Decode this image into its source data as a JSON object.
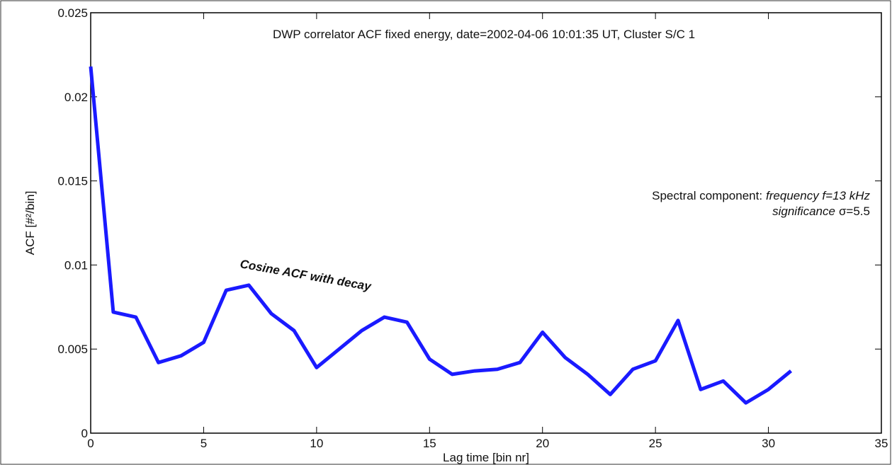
{
  "chart_data": {
    "type": "line",
    "title": "DWP correlator ACF fixed energy, date=2002-04-06 10:01:35 UT, Cluster S/C 1",
    "xlabel": "Lag time [bin nr]",
    "ylabel": "ACF [#²/bin]",
    "x": [
      0,
      1,
      2,
      3,
      4,
      5,
      6,
      7,
      8,
      9,
      10,
      11,
      12,
      13,
      14,
      15,
      16,
      17,
      18,
      19,
      20,
      21,
      22,
      23,
      24,
      25,
      26,
      27,
      28,
      29,
      30,
      31
    ],
    "series": [
      {
        "color": "#1a1aff",
        "values": [
          0.0218,
          0.0072,
          0.0069,
          0.0042,
          0.0046,
          0.0054,
          0.0085,
          0.0088,
          0.0071,
          0.0061,
          0.0039,
          0.005,
          0.0061,
          0.0069,
          0.0066,
          0.0044,
          0.0035,
          0.0037,
          0.0038,
          0.0042,
          0.006,
          0.0045,
          0.0035,
          0.0023,
          0.0038,
          0.0043,
          0.0067,
          0.0026,
          0.0031,
          0.0018,
          0.0026,
          0.0037
        ]
      }
    ],
    "xlim": [
      0,
      35
    ],
    "xticks": [
      0,
      5,
      10,
      15,
      20,
      25,
      30,
      35
    ],
    "ylim": [
      0,
      0.025
    ],
    "yticks": [
      0,
      0.005,
      0.01,
      0.015,
      0.02,
      0.025
    ],
    "annotations": {
      "curve": "Cosine ACF with decay",
      "line1": [
        "Spectral component:",
        "frequency f=13 kHz"
      ],
      "line2": [
        "significance",
        "σ=5.5"
      ]
    }
  }
}
